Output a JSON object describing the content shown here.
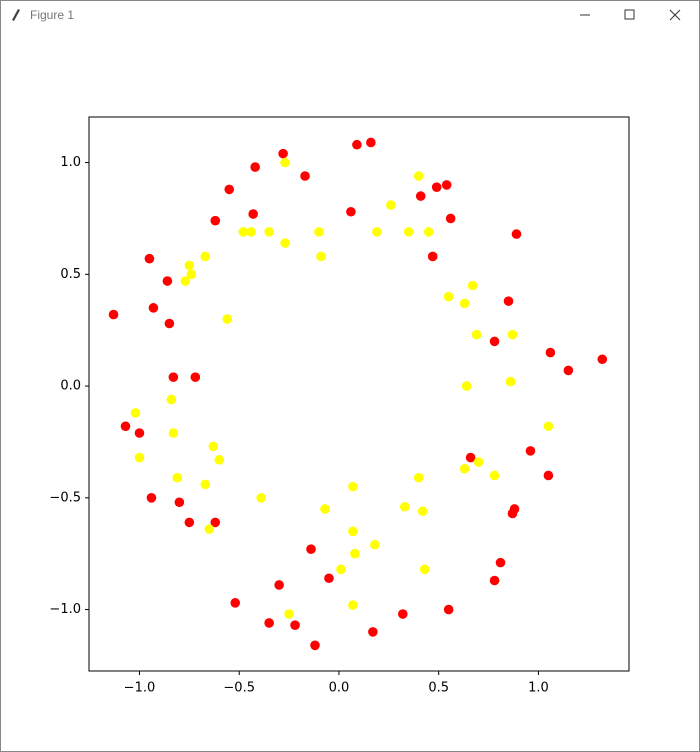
{
  "window": {
    "title": "Figure 1"
  },
  "chart_data": {
    "type": "scatter",
    "xlim": [
      -1.253,
      1.454
    ],
    "ylim": [
      -1.275,
      1.204
    ],
    "xticks": [
      {
        "value": -1.0,
        "label": "−1.0"
      },
      {
        "value": -0.5,
        "label": "−0.5"
      },
      {
        "value": 0.0,
        "label": "0.0"
      },
      {
        "value": 0.5,
        "label": "0.5"
      },
      {
        "value": 1.0,
        "label": "1.0"
      }
    ],
    "yticks": [
      {
        "value": -1.0,
        "label": "−1.0"
      },
      {
        "value": -0.5,
        "label": "−0.5"
      },
      {
        "value": 0.0,
        "label": "0.0"
      },
      {
        "value": 0.5,
        "label": "0.5"
      },
      {
        "value": 1.0,
        "label": "1.0"
      }
    ],
    "grid": false,
    "series": [
      {
        "color": "#ff0000",
        "x": [
          -1.13,
          -0.95,
          -0.93,
          -0.86,
          -0.85,
          -0.83,
          -0.72,
          -1.07,
          -1.0,
          -0.94,
          -0.8,
          -0.75,
          -0.62,
          -0.62,
          -0.55,
          -0.42,
          -0.43,
          -0.28,
          -0.17,
          0.06,
          0.09,
          0.16,
          0.41,
          0.49,
          0.54,
          0.56,
          0.47,
          0.89,
          0.85,
          0.78,
          1.06,
          1.15,
          1.32,
          0.96,
          1.05,
          0.66,
          0.88,
          0.87,
          0.81,
          0.78,
          0.55,
          0.32,
          0.17,
          -0.05,
          -0.14,
          -0.3,
          -0.22,
          -0.35,
          -0.52,
          -0.12
        ],
        "y": [
          0.32,
          0.57,
          0.35,
          0.47,
          0.28,
          0.04,
          0.04,
          -0.18,
          -0.21,
          -0.5,
          -0.52,
          -0.61,
          -0.61,
          0.74,
          0.88,
          0.98,
          0.77,
          1.04,
          0.94,
          0.78,
          1.08,
          1.09,
          0.85,
          0.89,
          0.9,
          0.75,
          0.58,
          0.68,
          0.38,
          0.2,
          0.15,
          0.07,
          0.12,
          -0.29,
          -0.4,
          -0.32,
          -0.55,
          -0.57,
          -0.79,
          -0.87,
          -1.0,
          -1.02,
          -1.1,
          -0.86,
          -0.73,
          -0.89,
          -1.07,
          -1.06,
          -0.97,
          -1.16
        ]
      },
      {
        "color": "#ffff00",
        "x": [
          -0.77,
          -0.75,
          -0.74,
          -0.67,
          -0.56,
          -0.48,
          -0.44,
          -0.35,
          -0.27,
          -0.27,
          -0.1,
          -0.09,
          0.19,
          0.26,
          0.35,
          0.4,
          0.45,
          0.55,
          0.63,
          0.67,
          0.69,
          0.87,
          0.64,
          0.86,
          -1.02,
          -1.0,
          -0.84,
          -0.83,
          -0.81,
          -0.63,
          -0.6,
          -0.67,
          -0.65,
          -0.39,
          0.07,
          -0.07,
          0.07,
          0.08,
          0.01,
          0.18,
          0.33,
          0.42,
          0.4,
          0.63,
          0.7,
          0.78,
          1.05,
          0.43,
          0.07,
          -0.25
        ],
        "y": [
          0.47,
          0.54,
          0.5,
          0.58,
          0.3,
          0.69,
          0.69,
          0.69,
          1.0,
          0.64,
          0.69,
          0.58,
          0.69,
          0.81,
          0.69,
          0.94,
          0.69,
          0.4,
          0.37,
          0.45,
          0.23,
          0.23,
          0.0,
          0.02,
          -0.12,
          -0.32,
          -0.06,
          -0.21,
          -0.41,
          -0.27,
          -0.33,
          -0.44,
          -0.64,
          -0.5,
          -0.45,
          -0.55,
          -0.65,
          -0.75,
          -0.82,
          -0.71,
          -0.54,
          -0.56,
          -0.41,
          -0.37,
          -0.34,
          -0.4,
          -0.18,
          -0.82,
          -0.98,
          -1.02
        ]
      }
    ]
  }
}
